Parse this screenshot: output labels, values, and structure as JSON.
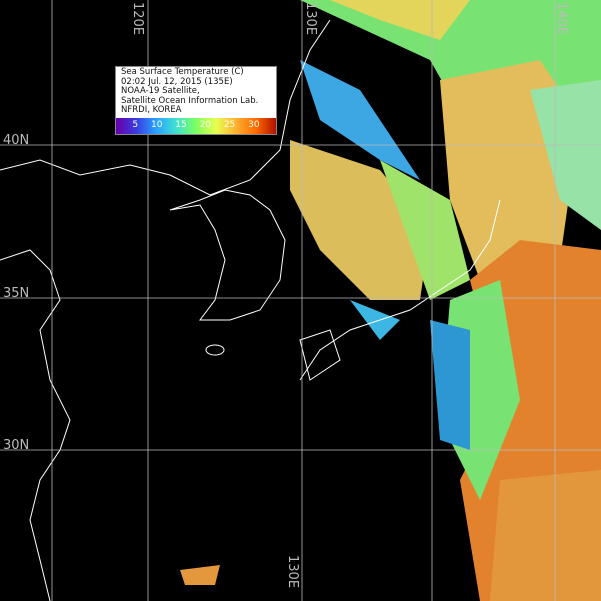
{
  "legend": {
    "lines": [
      "Sea Surface Temperature (C)",
      "02:02 Jul. 12, 2015 (135E)",
      "NOAA-19 Satellite,",
      "Satellite Ocean Information Lab.",
      "NFRDI, KOREA"
    ],
    "scale_ticks": [
      "5",
      "10",
      "15",
      "20",
      "25",
      "30"
    ],
    "colormap": [
      "#6a00a8",
      "#3a3ae0",
      "#2aa0ff",
      "#40e0d0",
      "#7cff60",
      "#e8ff50",
      "#ffb030",
      "#ff6a00",
      "#b01000"
    ]
  },
  "grid_labels": {
    "lon_top": [
      "120E",
      "130E",
      "140E"
    ],
    "lon_bottom": [
      "130E"
    ],
    "lat": [
      "40N",
      "35N",
      "30N"
    ]
  },
  "colors": {
    "background": "#000000",
    "coastline": "#ffffff",
    "grid": "#bbbbbb"
  }
}
